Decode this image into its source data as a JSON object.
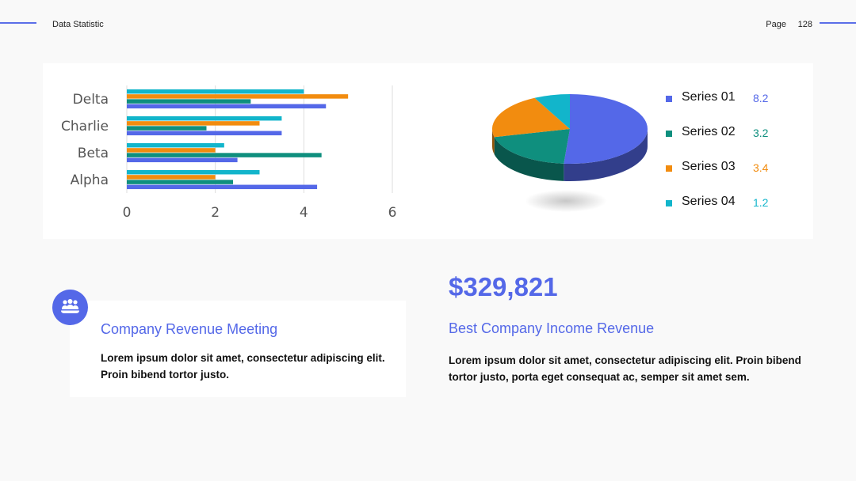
{
  "header": {
    "title": "Data Statistic",
    "page_label": "Page",
    "page_number": "128"
  },
  "colors": {
    "accent": "#5468e8",
    "series_01": "#5468e8",
    "series_02": "#0f8f7e",
    "series_03": "#f28c0f",
    "series_04": "#12b5cb"
  },
  "chart_data": [
    {
      "type": "bar",
      "orientation": "horizontal",
      "categories": [
        "Alpha",
        "Beta",
        "Charlie",
        "Delta"
      ],
      "series": [
        {
          "color": "#5468e8",
          "values": [
            4.3,
            2.5,
            3.5,
            4.5
          ]
        },
        {
          "color": "#0f8f7e",
          "values": [
            2.4,
            4.4,
            1.8,
            2.8
          ]
        },
        {
          "color": "#f28c0f",
          "values": [
            2.0,
            2.0,
            3.0,
            5.0
          ]
        },
        {
          "color": "#12b5cb",
          "values": [
            3.0,
            2.2,
            3.5,
            4.0
          ]
        }
      ],
      "xticks": [
        "0",
        "2",
        "4",
        "6"
      ],
      "xlim": [
        0,
        6
      ],
      "grid": true
    },
    {
      "type": "pie",
      "style": "3d",
      "series": [
        {
          "name": "Series 01",
          "value": 8.2,
          "color": "#5468e8"
        },
        {
          "name": "Series 02",
          "value": 3.2,
          "color": "#0f8f7e"
        },
        {
          "name": "Series 03",
          "value": 3.4,
          "color": "#f28c0f"
        },
        {
          "name": "Series 04",
          "value": 1.2,
          "color": "#12b5cb"
        }
      ],
      "legend": "right"
    }
  ],
  "legend": {
    "items": [
      {
        "name": "Series 01",
        "value": "8.2",
        "color": "#5468e8"
      },
      {
        "name": "Series 02",
        "value": "3.2",
        "color": "#0f8f7e"
      },
      {
        "name": "Series 03",
        "value": "3.4",
        "color": "#f28c0f"
      },
      {
        "name": "Series 04",
        "value": "1.2",
        "color": "#12b5cb"
      }
    ]
  },
  "meeting": {
    "icon": "group-meeting-icon",
    "title": "Company Revenue Meeting",
    "text": "Lorem ipsum dolor sit amet, consectetur adipiscing elit. Proin bibend tortor justo."
  },
  "income": {
    "value": "$329,821",
    "title": "Best Company Income Revenue",
    "text": "Lorem ipsum dolor sit amet, consectetur adipiscing elit. Proin bibend tortor justo, porta eget consequat ac, semper sit amet sem."
  }
}
